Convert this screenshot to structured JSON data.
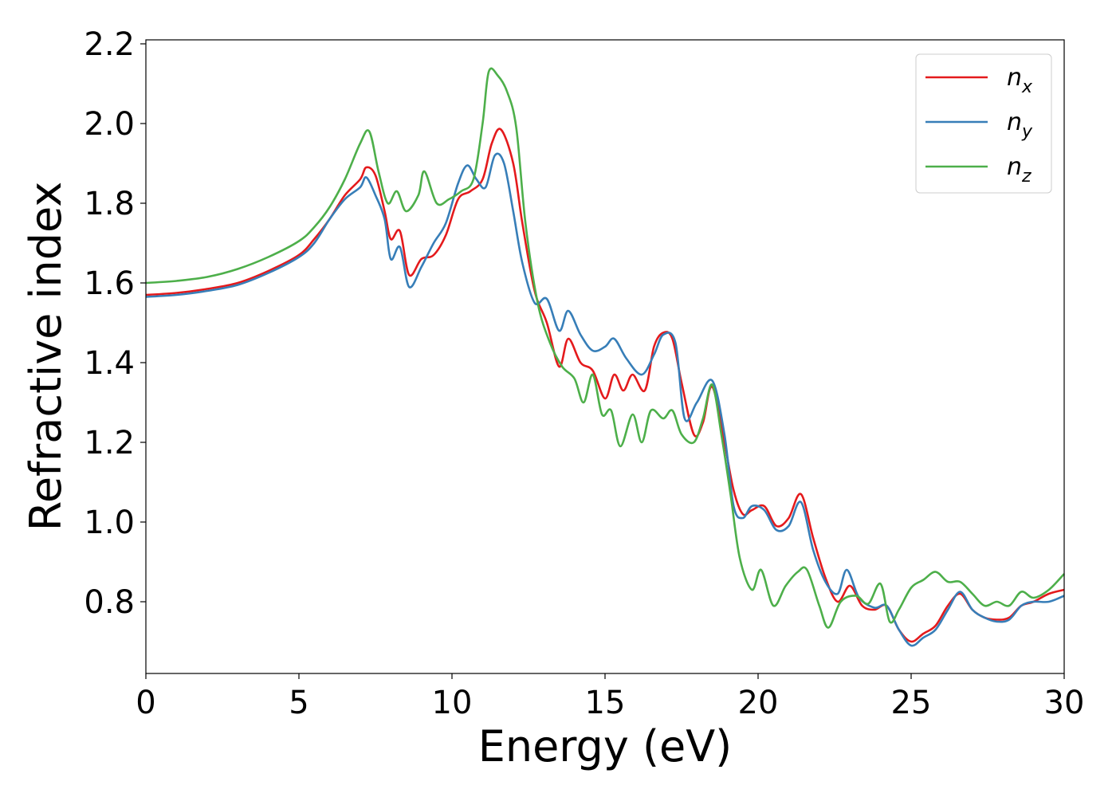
{
  "chart_data": {
    "type": "line",
    "title": "",
    "xlabel": "Energy (eV)",
    "ylabel": "Refractive index",
    "xlim": [
      0,
      30
    ],
    "ylim": [
      0.62,
      2.21
    ],
    "xticks": [
      0,
      5,
      10,
      15,
      20,
      25,
      30
    ],
    "yticks": [
      0.8,
      1.0,
      1.2,
      1.4,
      1.6,
      1.8,
      2.0,
      2.2
    ],
    "grid": false,
    "legend_position": "top-right",
    "series": [
      {
        "name": "n",
        "subscript": "x",
        "color": "#e41a1c",
        "points": [
          [
            0,
            1.57
          ],
          [
            1,
            1.575
          ],
          [
            2,
            1.585
          ],
          [
            3,
            1.6
          ],
          [
            4,
            1.63
          ],
          [
            5,
            1.67
          ],
          [
            5.5,
            1.71
          ],
          [
            6,
            1.76
          ],
          [
            6.5,
            1.82
          ],
          [
            7,
            1.86
          ],
          [
            7.2,
            1.89
          ],
          [
            7.5,
            1.87
          ],
          [
            7.8,
            1.78
          ],
          [
            8,
            1.71
          ],
          [
            8.3,
            1.73
          ],
          [
            8.6,
            1.62
          ],
          [
            9,
            1.66
          ],
          [
            9.4,
            1.67
          ],
          [
            9.8,
            1.72
          ],
          [
            10.2,
            1.81
          ],
          [
            10.6,
            1.83
          ],
          [
            11,
            1.86
          ],
          [
            11.3,
            1.95
          ],
          [
            11.6,
            1.985
          ],
          [
            12,
            1.9
          ],
          [
            12.3,
            1.75
          ],
          [
            12.7,
            1.58
          ],
          [
            13.1,
            1.5
          ],
          [
            13.5,
            1.39
          ],
          [
            13.8,
            1.46
          ],
          [
            14.2,
            1.4
          ],
          [
            14.6,
            1.38
          ],
          [
            15,
            1.31
          ],
          [
            15.3,
            1.37
          ],
          [
            15.6,
            1.33
          ],
          [
            15.9,
            1.37
          ],
          [
            16.3,
            1.33
          ],
          [
            16.6,
            1.44
          ],
          [
            16.9,
            1.475
          ],
          [
            17.2,
            1.46
          ],
          [
            17.5,
            1.35
          ],
          [
            17.9,
            1.22
          ],
          [
            18.2,
            1.25
          ],
          [
            18.5,
            1.34
          ],
          [
            18.9,
            1.2
          ],
          [
            19.2,
            1.08
          ],
          [
            19.5,
            1.02
          ],
          [
            19.8,
            1.03
          ],
          [
            20.2,
            1.04
          ],
          [
            20.6,
            0.99
          ],
          [
            21,
            1.01
          ],
          [
            21.4,
            1.07
          ],
          [
            21.8,
            0.96
          ],
          [
            22.2,
            0.86
          ],
          [
            22.6,
            0.8
          ],
          [
            23,
            0.84
          ],
          [
            23.4,
            0.79
          ],
          [
            23.8,
            0.78
          ],
          [
            24.2,
            0.79
          ],
          [
            24.6,
            0.73
          ],
          [
            25,
            0.7
          ],
          [
            25.4,
            0.72
          ],
          [
            25.8,
            0.74
          ],
          [
            26.2,
            0.79
          ],
          [
            26.6,
            0.82
          ],
          [
            27,
            0.78
          ],
          [
            27.4,
            0.76
          ],
          [
            27.8,
            0.755
          ],
          [
            28.2,
            0.76
          ],
          [
            28.6,
            0.79
          ],
          [
            29,
            0.8
          ],
          [
            29.5,
            0.82
          ],
          [
            30,
            0.83
          ]
        ]
      },
      {
        "name": "n",
        "subscript": "y",
        "color": "#377eb8",
        "points": [
          [
            0,
            1.565
          ],
          [
            1,
            1.57
          ],
          [
            2,
            1.58
          ],
          [
            3,
            1.595
          ],
          [
            4,
            1.625
          ],
          [
            5,
            1.665
          ],
          [
            5.5,
            1.7
          ],
          [
            6,
            1.76
          ],
          [
            6.5,
            1.81
          ],
          [
            7,
            1.84
          ],
          [
            7.2,
            1.865
          ],
          [
            7.5,
            1.82
          ],
          [
            7.8,
            1.76
          ],
          [
            8,
            1.66
          ],
          [
            8.3,
            1.69
          ],
          [
            8.6,
            1.59
          ],
          [
            9,
            1.64
          ],
          [
            9.4,
            1.7
          ],
          [
            9.8,
            1.75
          ],
          [
            10.2,
            1.85
          ],
          [
            10.5,
            1.895
          ],
          [
            10.8,
            1.86
          ],
          [
            11.1,
            1.84
          ],
          [
            11.4,
            1.92
          ],
          [
            11.7,
            1.9
          ],
          [
            12,
            1.78
          ],
          [
            12.3,
            1.65
          ],
          [
            12.7,
            1.55
          ],
          [
            13.1,
            1.56
          ],
          [
            13.5,
            1.48
          ],
          [
            13.8,
            1.53
          ],
          [
            14.2,
            1.47
          ],
          [
            14.6,
            1.43
          ],
          [
            15,
            1.44
          ],
          [
            15.3,
            1.46
          ],
          [
            15.7,
            1.41
          ],
          [
            16.2,
            1.37
          ],
          [
            16.6,
            1.42
          ],
          [
            16.9,
            1.47
          ],
          [
            17.3,
            1.45
          ],
          [
            17.6,
            1.26
          ],
          [
            18,
            1.3
          ],
          [
            18.5,
            1.355
          ],
          [
            18.9,
            1.22
          ],
          [
            19.2,
            1.04
          ],
          [
            19.5,
            1.01
          ],
          [
            19.8,
            1.04
          ],
          [
            20.2,
            1.03
          ],
          [
            20.6,
            0.98
          ],
          [
            21,
            0.99
          ],
          [
            21.4,
            1.05
          ],
          [
            21.8,
            0.93
          ],
          [
            22.2,
            0.85
          ],
          [
            22.6,
            0.82
          ],
          [
            22.9,
            0.88
          ],
          [
            23.3,
            0.81
          ],
          [
            23.8,
            0.785
          ],
          [
            24.2,
            0.79
          ],
          [
            24.6,
            0.73
          ],
          [
            25,
            0.69
          ],
          [
            25.4,
            0.71
          ],
          [
            25.8,
            0.73
          ],
          [
            26.2,
            0.78
          ],
          [
            26.6,
            0.825
          ],
          [
            27,
            0.78
          ],
          [
            27.4,
            0.76
          ],
          [
            27.8,
            0.75
          ],
          [
            28.2,
            0.755
          ],
          [
            28.6,
            0.79
          ],
          [
            29,
            0.8
          ],
          [
            29.5,
            0.8
          ],
          [
            30,
            0.815
          ]
        ]
      },
      {
        "name": "n",
        "subscript": "z",
        "color": "#4daf4a",
        "points": [
          [
            0,
            1.6
          ],
          [
            1,
            1.605
          ],
          [
            2,
            1.615
          ],
          [
            3,
            1.635
          ],
          [
            4,
            1.665
          ],
          [
            5,
            1.705
          ],
          [
            5.5,
            1.74
          ],
          [
            6,
            1.79
          ],
          [
            6.5,
            1.86
          ],
          [
            7,
            1.95
          ],
          [
            7.3,
            1.98
          ],
          [
            7.6,
            1.88
          ],
          [
            7.9,
            1.8
          ],
          [
            8.2,
            1.83
          ],
          [
            8.5,
            1.78
          ],
          [
            8.9,
            1.82
          ],
          [
            9.1,
            1.88
          ],
          [
            9.5,
            1.8
          ],
          [
            9.9,
            1.81
          ],
          [
            10.3,
            1.83
          ],
          [
            10.7,
            1.86
          ],
          [
            11,
            2.0
          ],
          [
            11.2,
            2.13
          ],
          [
            11.5,
            2.12
          ],
          [
            11.8,
            2.08
          ],
          [
            12.1,
            1.99
          ],
          [
            12.4,
            1.75
          ],
          [
            12.8,
            1.55
          ],
          [
            13.2,
            1.45
          ],
          [
            13.6,
            1.39
          ],
          [
            14,
            1.36
          ],
          [
            14.3,
            1.3
          ],
          [
            14.6,
            1.37
          ],
          [
            14.9,
            1.27
          ],
          [
            15.2,
            1.28
          ],
          [
            15.5,
            1.19
          ],
          [
            15.9,
            1.27
          ],
          [
            16.2,
            1.2
          ],
          [
            16.5,
            1.28
          ],
          [
            16.9,
            1.26
          ],
          [
            17.2,
            1.28
          ],
          [
            17.5,
            1.22
          ],
          [
            17.9,
            1.2
          ],
          [
            18.2,
            1.26
          ],
          [
            18.5,
            1.345
          ],
          [
            18.8,
            1.22
          ],
          [
            19.1,
            1.07
          ],
          [
            19.4,
            0.91
          ],
          [
            19.8,
            0.83
          ],
          [
            20.1,
            0.88
          ],
          [
            20.5,
            0.79
          ],
          [
            20.9,
            0.84
          ],
          [
            21.3,
            0.875
          ],
          [
            21.6,
            0.88
          ],
          [
            22,
            0.79
          ],
          [
            22.3,
            0.735
          ],
          [
            22.7,
            0.8
          ],
          [
            23.2,
            0.815
          ],
          [
            23.6,
            0.795
          ],
          [
            24,
            0.845
          ],
          [
            24.3,
            0.75
          ],
          [
            24.6,
            0.78
          ],
          [
            25,
            0.835
          ],
          [
            25.4,
            0.855
          ],
          [
            25.8,
            0.875
          ],
          [
            26.2,
            0.85
          ],
          [
            26.6,
            0.85
          ],
          [
            27,
            0.82
          ],
          [
            27.4,
            0.79
          ],
          [
            27.8,
            0.8
          ],
          [
            28.2,
            0.79
          ],
          [
            28.6,
            0.825
          ],
          [
            29,
            0.81
          ],
          [
            29.5,
            0.83
          ],
          [
            30,
            0.87
          ]
        ]
      }
    ]
  }
}
